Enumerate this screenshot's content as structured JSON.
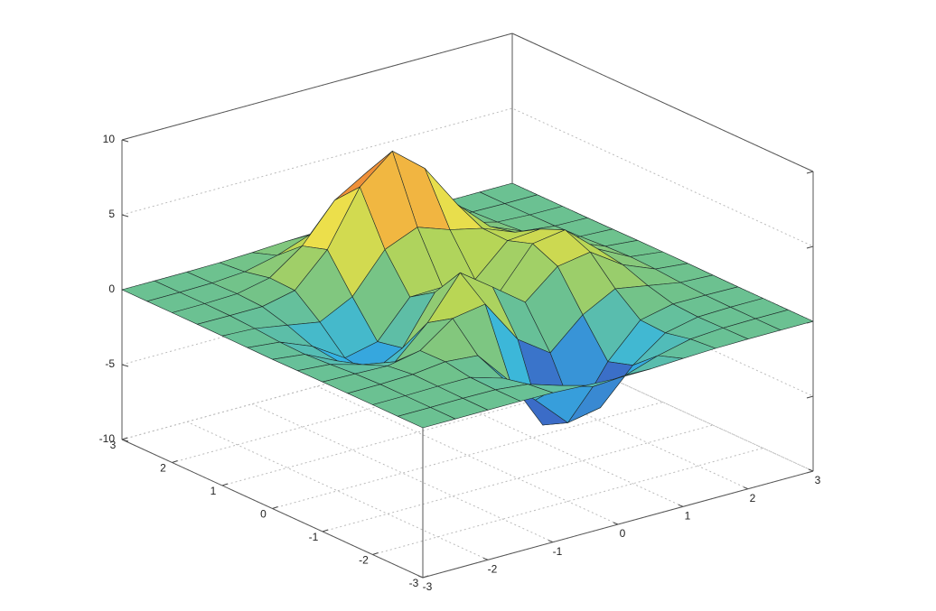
{
  "chart_data": {
    "type": "surface",
    "x": [
      -3,
      -2.5,
      -2,
      -1.5,
      -1,
      -0.5,
      0,
      0.5,
      1,
      1.5,
      2,
      2.5,
      3
    ],
    "y": [
      -3,
      -2.5,
      -2,
      -1.5,
      -1,
      -0.5,
      0,
      0.5,
      1,
      1.5,
      2,
      2.5,
      3
    ],
    "z": [
      [
        0,
        0,
        0,
        0,
        -0.03,
        -0.14,
        -0.24,
        -0.22,
        -0.11,
        -0.03,
        0,
        0,
        0
      ],
      [
        0,
        0,
        0.02,
        0,
        -0.23,
        -0.91,
        -1.57,
        -1.41,
        -0.69,
        -0.18,
        -0.03,
        0,
        0
      ],
      [
        0,
        0.01,
        0.05,
        0.05,
        -0.59,
        -2.64,
        -4.75,
        -4.34,
        -2.1,
        -0.53,
        -0.06,
        0,
        0
      ],
      [
        0,
        0.01,
        0.08,
        0.33,
        0.15,
        -2.19,
        -5.68,
        -5.76,
        -2.63,
        -0.44,
        0.04,
        0.03,
        0
      ],
      [
        -0.01,
        -0.06,
        -0.13,
        0.3,
        1.86,
        2.22,
        -0.72,
        -2.22,
        -0.27,
        0.88,
        0.5,
        0.11,
        0.01
      ],
      [
        -0.03,
        -0.2,
        -0.8,
        -1.21,
        0.8,
        3.55,
        2,
        0.39,
        2.2,
        2.56,
        1.12,
        0.24,
        0.03
      ],
      [
        -0.04,
        -0.3,
        -1.33,
        -2.77,
        -1.65,
        1.48,
        0.98,
        0.37,
        2.94,
        3.27,
        1.41,
        0.3,
        0.03
      ],
      [
        -0.03,
        -0.25,
        -1.12,
        -2.49,
        -2,
        0.39,
        0.46,
        0.37,
        2.38,
        2.56,
        1.09,
        0.23,
        0.03
      ],
      [
        -0.01,
        -0.11,
        -0.48,
        -0.86,
        0.23,
        2.79,
        3.69,
        2.93,
        2.43,
        1.58,
        0.58,
        0.11,
        0.01
      ],
      [
        0,
        -0.02,
        -0.01,
        0.48,
        2.61,
        6.2,
        8,
        6.25,
        3.25,
        1.19,
        0.29,
        0.05,
        0
      ],
      [
        0,
        0.01,
        0.08,
        0.55,
        2.09,
        4.55,
        5.85,
        4.56,
        2.21,
        0.68,
        0.13,
        0.02,
        0
      ],
      [
        0,
        0,
        0.03,
        0.19,
        0.69,
        1.47,
        1.88,
        1.47,
        0.7,
        0.2,
        0.04,
        0,
        0
      ],
      [
        0,
        0,
        0,
        0.03,
        0.11,
        0.23,
        0.3,
        0.23,
        0.11,
        0.03,
        0,
        0,
        0
      ]
    ],
    "xlim": [
      -3,
      3
    ],
    "ylim": [
      -3,
      3
    ],
    "zlim": [
      -10,
      10
    ],
    "xticks": [
      -3,
      -2,
      -1,
      0,
      1,
      2,
      3
    ],
    "yticks": [
      -3,
      -2,
      -1,
      0,
      1,
      2,
      3
    ],
    "zticks": [
      -10,
      -5,
      0,
      5,
      10
    ],
    "grid": true,
    "colormap": [
      "#373d98",
      "#3b6cc7",
      "#35b6e4",
      "#6fc28c",
      "#b9d655",
      "#f2e04a",
      "#f1963a",
      "#d6282a"
    ]
  }
}
